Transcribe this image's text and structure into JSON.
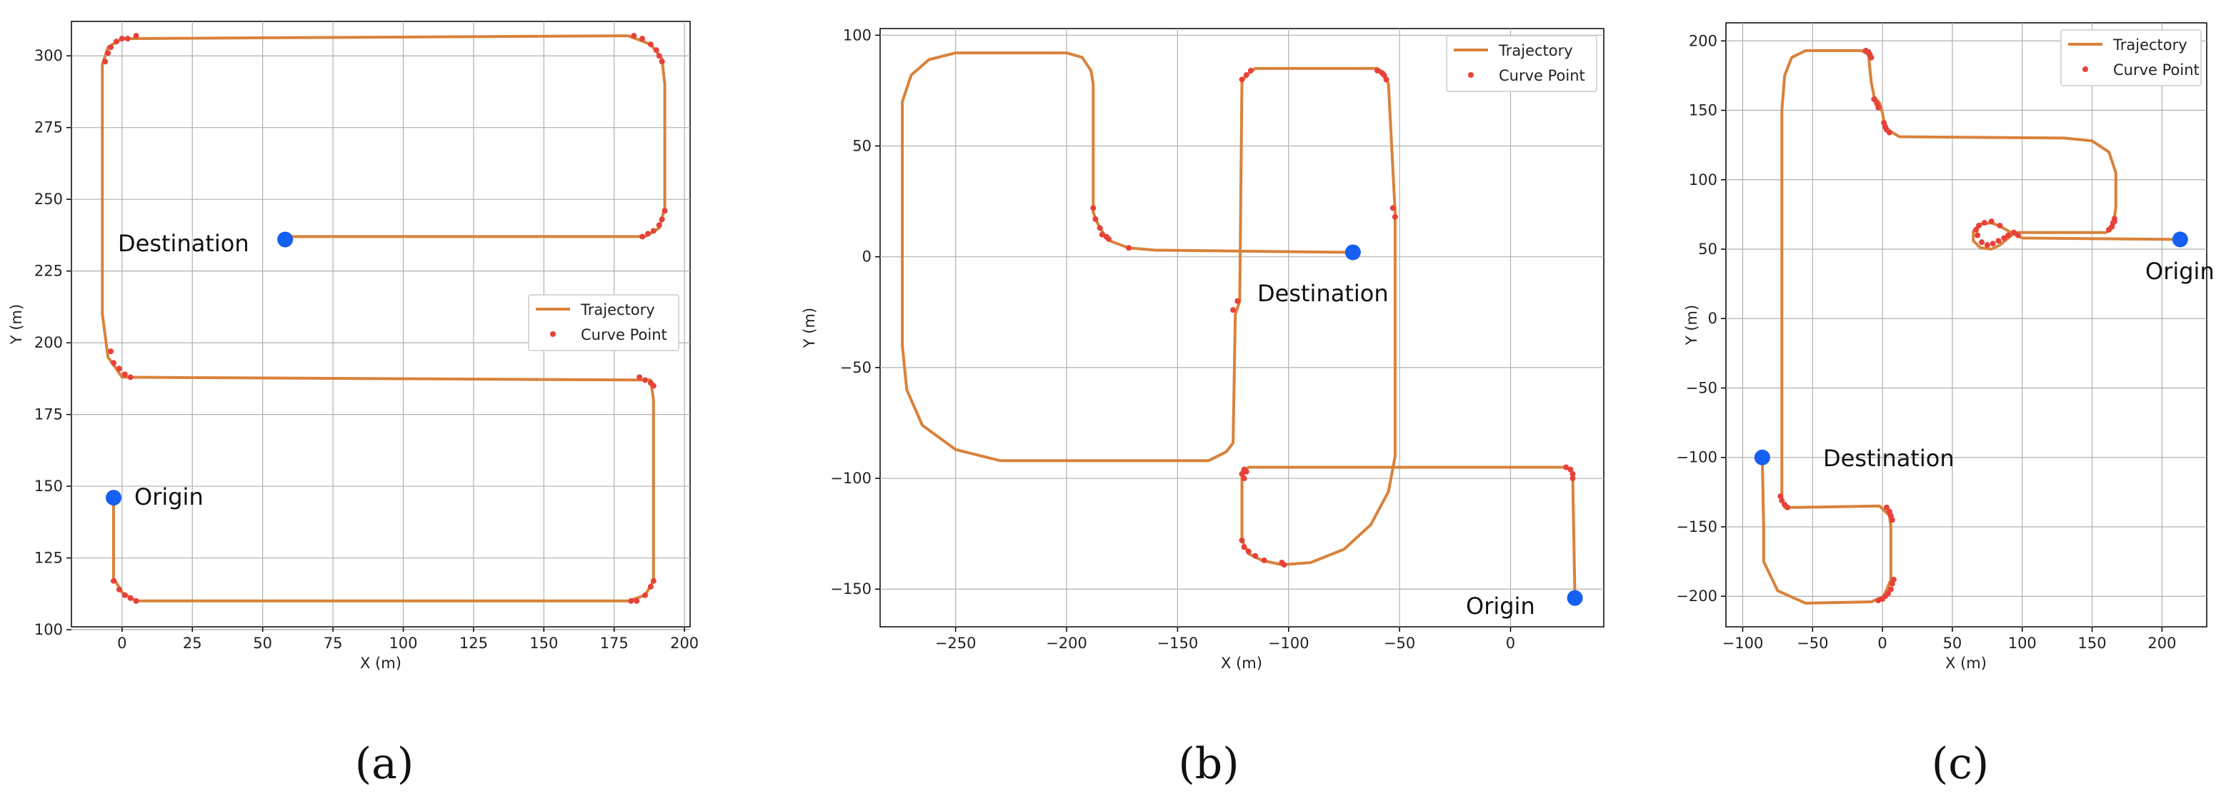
{
  "colors": {
    "trajectory": "#d9823b",
    "curve_point": "#e8413a",
    "marker": "#1560f0",
    "grid": "#b0b0b0"
  },
  "chart_data": [
    {
      "type": "line",
      "caption": "(a)",
      "xlabel": "X (m)",
      "ylabel": "Y (m)",
      "xlim": [
        -18,
        202
      ],
      "ylim": [
        101,
        312
      ],
      "xticks": [
        0,
        25,
        50,
        75,
        100,
        125,
        150,
        175,
        200
      ],
      "yticks": [
        100,
        125,
        150,
        175,
        200,
        225,
        250,
        275,
        300
      ],
      "grid": true,
      "legend": {
        "position": "center-right",
        "entries": [
          "Trajectory",
          "Curve Point"
        ]
      },
      "series": [
        {
          "name": "Trajectory",
          "points": [
            [
              -3,
              146
            ],
            [
              -3,
              118
            ],
            [
              0,
              113
            ],
            [
              5,
              110
            ],
            [
              180,
              110
            ],
            [
              186,
              112
            ],
            [
              189,
              117
            ],
            [
              189,
              180
            ],
            [
              188,
              187
            ],
            [
              0,
              188
            ],
            [
              -5,
              195
            ],
            [
              -7,
              210
            ],
            [
              -7,
              297
            ],
            [
              -5,
              303
            ],
            [
              0,
              306
            ],
            [
              180,
              307
            ],
            [
              188,
              304
            ],
            [
              192,
              299
            ],
            [
              193,
              290
            ],
            [
              193,
              247
            ],
            [
              191,
              240
            ],
            [
              186,
              237
            ],
            [
              58,
              237
            ]
          ]
        },
        {
          "name": "Curve Point",
          "points": [
            [
              -3,
              117
            ],
            [
              -1,
              114
            ],
            [
              1,
              112
            ],
            [
              3,
              111
            ],
            [
              5,
              110
            ],
            [
              181,
              110
            ],
            [
              183,
              110
            ],
            [
              186,
              112
            ],
            [
              188,
              115
            ],
            [
              189,
              117
            ],
            [
              189,
              185
            ],
            [
              188,
              186
            ],
            [
              186,
              187
            ],
            [
              184,
              188
            ],
            [
              -4,
              197
            ],
            [
              -3,
              193
            ],
            [
              -1,
              191
            ],
            [
              1,
              189
            ],
            [
              3,
              188
            ],
            [
              -6,
              298
            ],
            [
              -5,
              301
            ],
            [
              -4,
              303
            ],
            [
              -2,
              305
            ],
            [
              0,
              306
            ],
            [
              2,
              306
            ],
            [
              5,
              307
            ],
            [
              182,
              307
            ],
            [
              185,
              306
            ],
            [
              188,
              304
            ],
            [
              190,
              302
            ],
            [
              191,
              300
            ],
            [
              192,
              298
            ],
            [
              193,
              246
            ],
            [
              192,
              243
            ],
            [
              191,
              241
            ],
            [
              189,
              239
            ],
            [
              187,
              238
            ],
            [
              185,
              237
            ]
          ]
        }
      ],
      "markers": [
        {
          "label": "Origin",
          "point": [
            -3,
            146
          ]
        },
        {
          "label": "Destination",
          "point": [
            58,
            236
          ]
        }
      ]
    },
    {
      "type": "line",
      "caption": "(b)",
      "xlabel": "X (m)",
      "ylabel": "Y (m)",
      "xlim": [
        -284,
        42
      ],
      "ylim": [
        -167,
        103
      ],
      "xticks": [
        -250,
        -200,
        -150,
        -100,
        -50,
        0
      ],
      "xtick_labels": [
        "−250",
        "−200",
        "−150",
        "−100",
        "−50",
        "0"
      ],
      "yticks": [
        -150,
        -100,
        -50,
        0,
        50,
        100
      ],
      "ytick_labels": [
        "−150",
        "−100",
        "−50",
        "0",
        "50",
        "100"
      ],
      "grid": true,
      "legend": {
        "position": "top-right",
        "entries": [
          "Trajectory",
          "Curve Point"
        ]
      },
      "series": [
        {
          "name": "Trajectory",
          "points": [
            [
              29,
              -154
            ],
            [
              28,
              -99
            ],
            [
              27,
              -96
            ],
            [
              24,
              -95
            ],
            [
              -118,
              -95
            ],
            [
              -121,
              -97
            ],
            [
              -121,
              -128
            ],
            [
              -118,
              -134
            ],
            [
              -112,
              -137
            ],
            [
              -103,
              -139
            ],
            [
              -90,
              -138
            ],
            [
              -75,
              -132
            ],
            [
              -63,
              -121
            ],
            [
              -55,
              -106
            ],
            [
              -52,
              -90
            ],
            [
              -52,
              15
            ],
            [
              -52,
              20
            ],
            [
              -55,
              78
            ],
            [
              -57,
              83
            ],
            [
              -60,
              85
            ],
            [
              -115,
              85
            ],
            [
              -119,
              82
            ],
            [
              -121,
              79
            ],
            [
              -122,
              -20
            ],
            [
              -124,
              -26
            ],
            [
              -125,
              -84
            ],
            [
              -128,
              -88
            ],
            [
              -136,
              -92
            ],
            [
              -230,
              -92
            ],
            [
              -250,
              -87
            ],
            [
              -265,
              -76
            ],
            [
              -272,
              -60
            ],
            [
              -274,
              -40
            ],
            [
              -274,
              70
            ],
            [
              -270,
              82
            ],
            [
              -262,
              89
            ],
            [
              -250,
              92
            ],
            [
              -200,
              92
            ],
            [
              -193,
              90
            ],
            [
              -189,
              84
            ],
            [
              -188,
              78
            ],
            [
              -188,
              20
            ],
            [
              -186,
              15
            ],
            [
              -183,
              10
            ],
            [
              -180,
              7
            ],
            [
              -172,
              4
            ],
            [
              -160,
              3
            ],
            [
              -71,
              2
            ]
          ]
        },
        {
          "name": "Curve Point",
          "points": [
            [
              27,
              -96
            ],
            [
              28,
              -98
            ],
            [
              28,
              -100
            ],
            [
              25,
              -95
            ],
            [
              -120,
              -96
            ],
            [
              -121,
              -98
            ],
            [
              -120,
              -100
            ],
            [
              -119,
              -97
            ],
            [
              -121,
              -128
            ],
            [
              -120,
              -131
            ],
            [
              -118,
              -133
            ],
            [
              -115,
              -135
            ],
            [
              -111,
              -137
            ],
            [
              -103,
              -138
            ],
            [
              -102,
              -139
            ],
            [
              -53,
              22
            ],
            [
              -52,
              18
            ],
            [
              -56,
              80
            ],
            [
              -57,
              82
            ],
            [
              -58,
              83
            ],
            [
              -60,
              84
            ],
            [
              -117,
              84
            ],
            [
              -119,
              82
            ],
            [
              -121,
              80
            ],
            [
              -123,
              -20
            ],
            [
              -125,
              -24
            ],
            [
              -188,
              22
            ],
            [
              -187,
              17
            ],
            [
              -185,
              13
            ],
            [
              -184,
              10
            ],
            [
              -182,
              9
            ],
            [
              -181,
              8
            ],
            [
              -172,
              4
            ]
          ]
        }
      ],
      "markers": [
        {
          "label": "Origin",
          "point": [
            29,
            -154
          ]
        },
        {
          "label": "Destination",
          "point": [
            -71,
            2
          ]
        }
      ]
    },
    {
      "type": "line",
      "caption": "(c)",
      "xlabel": "X (m)",
      "ylabel": "Y (m)",
      "xlim": [
        -112,
        232
      ],
      "ylim": [
        -222,
        213
      ],
      "xticks": [
        -100,
        -50,
        0,
        50,
        100,
        150,
        200
      ],
      "xtick_labels": [
        "−100",
        "−50",
        "0",
        "50",
        "100",
        "150",
        "200"
      ],
      "yticks": [
        -200,
        -150,
        -100,
        -50,
        0,
        50,
        100,
        150,
        200
      ],
      "ytick_labels": [
        "−200",
        "−150",
        "−100",
        "−50",
        "0",
        "50",
        "100",
        "150",
        "200"
      ],
      "grid": true,
      "legend": {
        "position": "top-right",
        "entries": [
          "Trajectory",
          "Curve Point"
        ]
      },
      "series": [
        {
          "name": "Trajectory",
          "points": [
            [
              213,
              57
            ],
            [
              100,
              58
            ],
            [
              92,
              62
            ],
            [
              85,
              66
            ],
            [
              78,
              69
            ],
            [
              70,
              68
            ],
            [
              65,
              63
            ],
            [
              65,
              56
            ],
            [
              70,
              51
            ],
            [
              78,
              50
            ],
            [
              84,
              53
            ],
            [
              90,
              58
            ],
            [
              95,
              62
            ],
            [
              160,
              62
            ],
            [
              165,
              66
            ],
            [
              167,
              80
            ],
            [
              167,
              105
            ],
            [
              162,
              120
            ],
            [
              150,
              128
            ],
            [
              130,
              130
            ],
            [
              12,
              131
            ],
            [
              4,
              136
            ],
            [
              1,
              142
            ],
            [
              0,
              148
            ],
            [
              -2,
              155
            ],
            [
              -6,
              160
            ],
            [
              -8,
              170
            ],
            [
              -9,
              180
            ],
            [
              -10,
              190
            ],
            [
              -15,
              193
            ],
            [
              -55,
              193
            ],
            [
              -65,
              188
            ],
            [
              -70,
              175
            ],
            [
              -72,
              150
            ],
            [
              -72,
              -130
            ],
            [
              -70,
              -136
            ],
            [
              -60,
              -136
            ],
            [
              -2,
              -135
            ],
            [
              5,
              -142
            ],
            [
              6,
              -150
            ],
            [
              6,
              -188
            ],
            [
              1,
              -200
            ],
            [
              -8,
              -204
            ],
            [
              -55,
              -205
            ],
            [
              -75,
              -196
            ],
            [
              -85,
              -175
            ],
            [
              -85,
              -150
            ],
            [
              -86,
              -100
            ]
          ]
        },
        {
          "name": "Curve Point",
          "points": [
            [
              97,
              60
            ],
            [
              94,
              62
            ],
            [
              90,
              60
            ],
            [
              87,
              58
            ],
            [
              83,
              56
            ],
            [
              79,
              54
            ],
            [
              75,
              53
            ],
            [
              71,
              55
            ],
            [
              68,
              60
            ],
            [
              67,
              64
            ],
            [
              69,
              67
            ],
            [
              73,
              69
            ],
            [
              78,
              70
            ],
            [
              84,
              67
            ],
            [
              162,
              64
            ],
            [
              164,
              66
            ],
            [
              165,
              69
            ],
            [
              166,
              72
            ],
            [
              166,
              70
            ],
            [
              5,
              134
            ],
            [
              3,
              136
            ],
            [
              2,
              138
            ],
            [
              1,
              141
            ],
            [
              -3,
              152
            ],
            [
              -4,
              155
            ],
            [
              -6,
              158
            ],
            [
              -8,
              188
            ],
            [
              -9,
              190
            ],
            [
              -10,
              192
            ],
            [
              -12,
              193
            ],
            [
              -73,
              -128
            ],
            [
              -72,
              -131
            ],
            [
              -70,
              -134
            ],
            [
              -68,
              -136
            ],
            [
              3,
              -136
            ],
            [
              5,
              -139
            ],
            [
              6,
              -142
            ],
            [
              7,
              -145
            ],
            [
              8,
              -188
            ],
            [
              7,
              -191
            ],
            [
              6,
              -195
            ],
            [
              4,
              -198
            ],
            [
              2,
              -200
            ],
            [
              0,
              -202
            ],
            [
              -3,
              -203
            ]
          ]
        }
      ],
      "markers": [
        {
          "label": "Origin",
          "point": [
            213,
            57
          ]
        },
        {
          "label": "Destination",
          "point": [
            -86,
            -100
          ]
        }
      ]
    }
  ]
}
